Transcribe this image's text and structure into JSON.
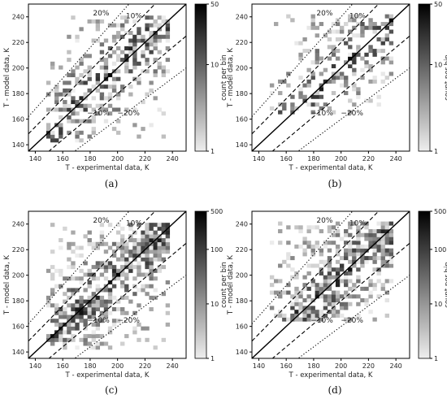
{
  "figure": {
    "title": ""
  },
  "chart_data": [
    {
      "type": "heatmap",
      "caption": "(a)",
      "xlabel": "T - experimental data, K",
      "ylabel": "T - model data, K",
      "xlim": [
        135,
        250
      ],
      "ylim": [
        135,
        250
      ],
      "xticks": [
        140,
        160,
        180,
        200,
        220,
        240
      ],
      "yticks": [
        140,
        160,
        180,
        200,
        220,
        240
      ],
      "colorbar": {
        "label": "count per bin",
        "scale": "log",
        "min": 1,
        "max": 50,
        "ticks": [
          1,
          10,
          50
        ]
      },
      "reference_lines": [
        {
          "label": "",
          "slope": 1.0,
          "style": "solid"
        },
        {
          "label": "10%",
          "slope": 1.1,
          "style": "dashed"
        },
        {
          "label": "−10%",
          "slope": 0.9,
          "style": "dashed"
        },
        {
          "label": "20%",
          "slope": 1.2,
          "style": "dotted"
        },
        {
          "label": "−20%",
          "slope": 0.8,
          "style": "dotted"
        }
      ],
      "bin_size": 3,
      "data_range": {
        "x": [
          148,
          238
        ],
        "y": [
          142,
          240
        ]
      },
      "count_distribution": {
        "max": 50,
        "density": 0.55,
        "spread": 14
      },
      "grid": false
    },
    {
      "type": "heatmap",
      "caption": "(b)",
      "xlabel": "T - experimental data, K",
      "ylabel": "T - model data, K",
      "xlim": [
        135,
        250
      ],
      "ylim": [
        135,
        250
      ],
      "xticks": [
        140,
        160,
        180,
        200,
        220,
        240
      ],
      "yticks": [
        140,
        160,
        180,
        200,
        220,
        240
      ],
      "colorbar": {
        "label": "count per bin",
        "scale": "log",
        "min": 1,
        "max": 50,
        "ticks": [
          1,
          10,
          50
        ]
      },
      "reference_lines": [
        {
          "label": "",
          "slope": 1.0,
          "style": "solid"
        },
        {
          "label": "10%",
          "slope": 1.1,
          "style": "dashed"
        },
        {
          "label": "−10%",
          "slope": 0.9,
          "style": "dashed"
        },
        {
          "label": "20%",
          "slope": 1.2,
          "style": "dotted"
        },
        {
          "label": "−20%",
          "slope": 0.8,
          "style": "dotted"
        }
      ],
      "bin_size": 3,
      "data_range": {
        "x": [
          148,
          238
        ],
        "y": [
          164,
          240
        ]
      },
      "count_distribution": {
        "max": 50,
        "density": 0.45,
        "spread": 18
      },
      "grid": false
    },
    {
      "type": "heatmap",
      "caption": "(c)",
      "xlabel": "T - experimental data, K",
      "ylabel": "T - model data, K",
      "xlim": [
        135,
        250
      ],
      "ylim": [
        135,
        250
      ],
      "xticks": [
        140,
        160,
        180,
        200,
        220,
        240
      ],
      "yticks": [
        140,
        160,
        180,
        200,
        220,
        240
      ],
      "colorbar": {
        "label": "count per bin",
        "scale": "log",
        "min": 1,
        "max": 500,
        "ticks": [
          1,
          10,
          100,
          500
        ]
      },
      "reference_lines": [
        {
          "label": "",
          "slope": 1.0,
          "style": "solid"
        },
        {
          "label": "10%",
          "slope": 1.1,
          "style": "dashed"
        },
        {
          "label": "−10%",
          "slope": 0.9,
          "style": "dashed"
        },
        {
          "label": "20%",
          "slope": 1.2,
          "style": "dotted"
        },
        {
          "label": "−20%",
          "slope": 0.8,
          "style": "dotted"
        }
      ],
      "bin_size": 3,
      "data_range": {
        "x": [
          148,
          238
        ],
        "y": [
          142,
          240
        ]
      },
      "count_distribution": {
        "max": 500,
        "density": 0.8,
        "spread": 16
      },
      "grid": false
    },
    {
      "type": "heatmap",
      "caption": "(d)",
      "xlabel": "T - experimental data, K",
      "ylabel": "T - model data, K",
      "xlim": [
        135,
        250
      ],
      "ylim": [
        135,
        250
      ],
      "xticks": [
        140,
        160,
        180,
        200,
        220,
        240
      ],
      "yticks": [
        140,
        160,
        180,
        200,
        220,
        240
      ],
      "colorbar": {
        "label": "count per bin",
        "scale": "log",
        "min": 1,
        "max": 500,
        "ticks": [
          1,
          10,
          100,
          500
        ]
      },
      "reference_lines": [
        {
          "label": "",
          "slope": 1.0,
          "style": "solid"
        },
        {
          "label": "10%",
          "slope": 1.1,
          "style": "dashed"
        },
        {
          "label": "−10%",
          "slope": 0.9,
          "style": "dashed"
        },
        {
          "label": "20%",
          "slope": 1.2,
          "style": "dotted"
        },
        {
          "label": "−20%",
          "slope": 0.8,
          "style": "dotted"
        }
      ],
      "bin_size": 3,
      "data_range": {
        "x": [
          148,
          238
        ],
        "y": [
          164,
          240
        ]
      },
      "count_distribution": {
        "max": 500,
        "density": 0.75,
        "spread": 20
      },
      "grid": false
    }
  ]
}
